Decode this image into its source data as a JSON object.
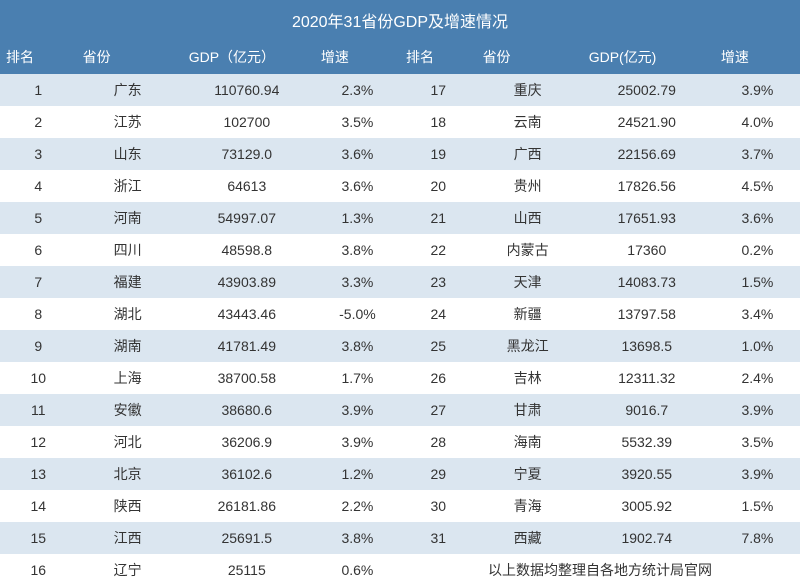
{
  "title": "2020年31省份GDP及增速情况",
  "columns_left": [
    "排名",
    "省份",
    "GDP（亿元）",
    "增速"
  ],
  "columns_right": [
    "排名",
    "省份",
    "GDP(亿元)",
    "增速"
  ],
  "footnote": "以上数据均整理自各地方统计局官网",
  "colors": {
    "header_bg": "#4a7fb0",
    "header_text": "#ffffff",
    "row_odd_bg": "#dbe6f0",
    "row_even_bg": "#ffffff",
    "text_color": "#333333"
  },
  "font_sizes": {
    "title": 16,
    "header": 14,
    "cell": 14
  },
  "rows": [
    {
      "l_rank": "1",
      "l_prov": "广东",
      "l_gdp": "110760.94",
      "l_growth": "2.3%",
      "r_rank": "17",
      "r_prov": "重庆",
      "r_gdp": "25002.79",
      "r_growth": "3.9%"
    },
    {
      "l_rank": "2",
      "l_prov": "江苏",
      "l_gdp": "102700",
      "l_growth": "3.5%",
      "r_rank": "18",
      "r_prov": "云南",
      "r_gdp": "24521.90",
      "r_growth": "4.0%"
    },
    {
      "l_rank": "3",
      "l_prov": "山东",
      "l_gdp": "73129.0",
      "l_growth": "3.6%",
      "r_rank": "19",
      "r_prov": "广西",
      "r_gdp": "22156.69",
      "r_growth": "3.7%"
    },
    {
      "l_rank": "4",
      "l_prov": "浙江",
      "l_gdp": "64613",
      "l_growth": "3.6%",
      "r_rank": "20",
      "r_prov": "贵州",
      "r_gdp": "17826.56",
      "r_growth": "4.5%"
    },
    {
      "l_rank": "5",
      "l_prov": "河南",
      "l_gdp": "54997.07",
      "l_growth": "1.3%",
      "r_rank": "21",
      "r_prov": "山西",
      "r_gdp": "17651.93",
      "r_growth": "3.6%"
    },
    {
      "l_rank": "6",
      "l_prov": "四川",
      "l_gdp": "48598.8",
      "l_growth": "3.8%",
      "r_rank": "22",
      "r_prov": "内蒙古",
      "r_gdp": "17360",
      "r_growth": "0.2%"
    },
    {
      "l_rank": "7",
      "l_prov": "福建",
      "l_gdp": "43903.89",
      "l_growth": "3.3%",
      "r_rank": "23",
      "r_prov": "天津",
      "r_gdp": "14083.73",
      "r_growth": "1.5%"
    },
    {
      "l_rank": "8",
      "l_prov": "湖北",
      "l_gdp": "43443.46",
      "l_growth": "-5.0%",
      "r_rank": "24",
      "r_prov": "新疆",
      "r_gdp": "13797.58",
      "r_growth": "3.4%"
    },
    {
      "l_rank": "9",
      "l_prov": "湖南",
      "l_gdp": "41781.49",
      "l_growth": "3.8%",
      "r_rank": "25",
      "r_prov": "黑龙江",
      "r_gdp": "13698.5",
      "r_growth": "1.0%"
    },
    {
      "l_rank": "10",
      "l_prov": "上海",
      "l_gdp": "38700.58",
      "l_growth": "1.7%",
      "r_rank": "26",
      "r_prov": "吉林",
      "r_gdp": "12311.32",
      "r_growth": "2.4%"
    },
    {
      "l_rank": "11",
      "l_prov": "安徽",
      "l_gdp": "38680.6",
      "l_growth": "3.9%",
      "r_rank": "27",
      "r_prov": "甘肃",
      "r_gdp": "9016.7",
      "r_growth": "3.9%"
    },
    {
      "l_rank": "12",
      "l_prov": "河北",
      "l_gdp": "36206.9",
      "l_growth": "3.9%",
      "r_rank": "28",
      "r_prov": "海南",
      "r_gdp": "5532.39",
      "r_growth": "3.5%"
    },
    {
      "l_rank": "13",
      "l_prov": "北京",
      "l_gdp": "36102.6",
      "l_growth": "1.2%",
      "r_rank": "29",
      "r_prov": "宁夏",
      "r_gdp": "3920.55",
      "r_growth": "3.9%"
    },
    {
      "l_rank": "14",
      "l_prov": "陕西",
      "l_gdp": "26181.86",
      "l_growth": "2.2%",
      "r_rank": "30",
      "r_prov": "青海",
      "r_gdp": "3005.92",
      "r_growth": "1.5%"
    },
    {
      "l_rank": "15",
      "l_prov": "江西",
      "l_gdp": "25691.5",
      "l_growth": "3.8%",
      "r_rank": "31",
      "r_prov": "西藏",
      "r_gdp": "1902.74",
      "r_growth": "7.8%"
    },
    {
      "l_rank": "16",
      "l_prov": "辽宁",
      "l_gdp": "25115",
      "l_growth": "0.6%",
      "footnote": true
    }
  ]
}
